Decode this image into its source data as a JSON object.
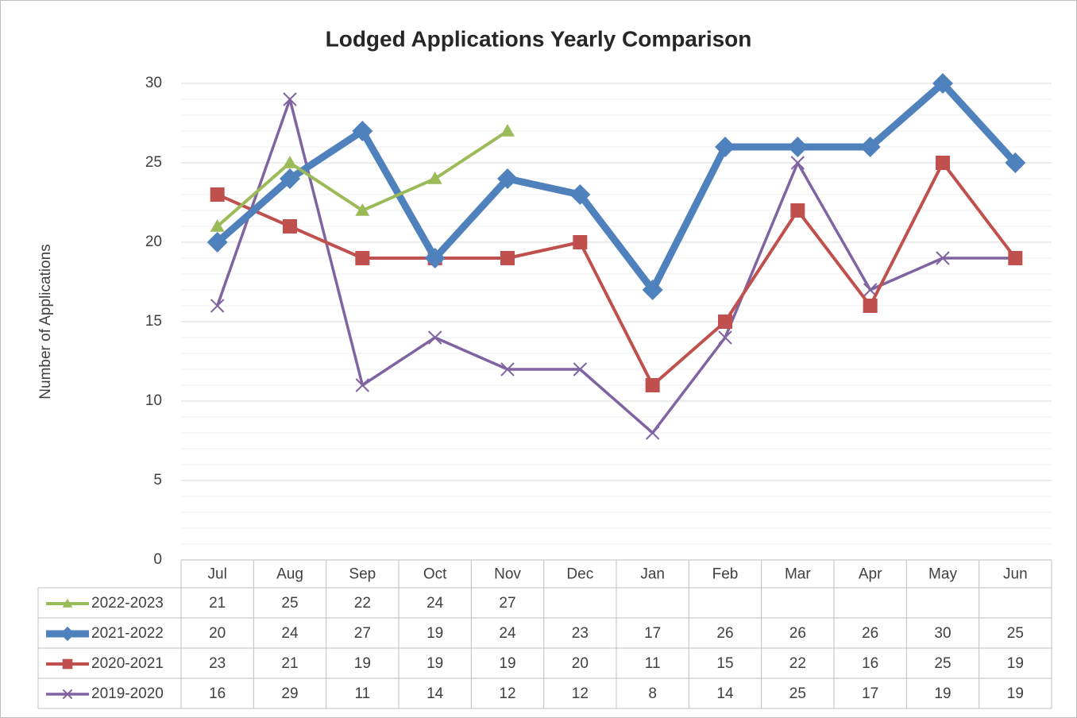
{
  "chart_data": {
    "type": "line",
    "title": "Lodged Applications Yearly Comparison",
    "y_label": "Number of Applications",
    "categories": [
      "Jul",
      "Aug",
      "Sep",
      "Oct",
      "Nov",
      "Dec",
      "Jan",
      "Feb",
      "Mar",
      "Apr",
      "May",
      "Jun"
    ],
    "series": [
      {
        "name": "2022-2023",
        "color": "#9bbb59",
        "marker": "triangle",
        "values": [
          21,
          25,
          22,
          24,
          27,
          null,
          null,
          null,
          null,
          null,
          null,
          null
        ]
      },
      {
        "name": "2021-2022",
        "color": "#4f81bd",
        "marker": "diamond",
        "values": [
          20,
          24,
          27,
          19,
          24,
          23,
          17,
          26,
          26,
          26,
          30,
          25
        ]
      },
      {
        "name": "2020-2021",
        "color": "#c0504d",
        "marker": "square",
        "values": [
          23,
          21,
          19,
          19,
          19,
          20,
          11,
          15,
          22,
          16,
          25,
          19
        ]
      },
      {
        "name": "2019-2020",
        "color": "#8064a2",
        "marker": "x",
        "values": [
          16,
          29,
          11,
          14,
          12,
          12,
          8,
          14,
          25,
          17,
          19,
          19
        ]
      }
    ],
    "ylim": [
      0,
      30
    ],
    "yticks": [
      0,
      5,
      10,
      15,
      20,
      25,
      30
    ],
    "grid": true,
    "minor_grid_step": 1,
    "data_table": true
  }
}
